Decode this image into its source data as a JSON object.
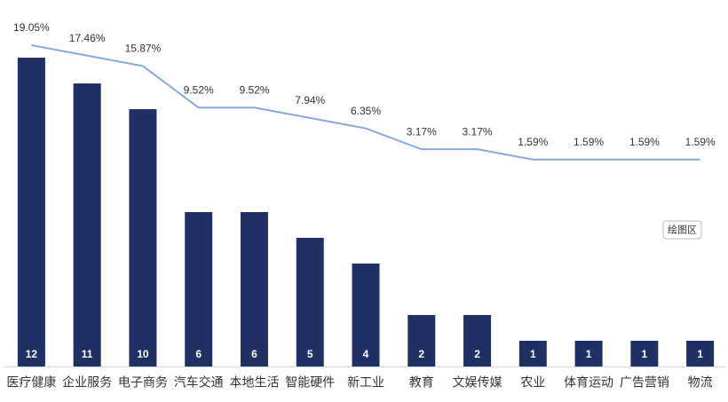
{
  "chart_data": {
    "type": "bar-line",
    "categories": [
      "医疗健康",
      "企业服务",
      "电子商务",
      "汽车交通",
      "本地生活",
      "智能硬件",
      "新工业",
      "教育",
      "文娱传媒",
      "农业",
      "体育运动",
      "广告营销",
      "物流"
    ],
    "series": [
      {
        "type": "bar",
        "color": "#1f3164",
        "values": [
          12,
          11,
          10,
          6,
          6,
          5,
          4,
          2,
          2,
          1,
          1,
          1,
          1
        ]
      },
      {
        "type": "line",
        "axis": "y2",
        "color": "#86a8dc",
        "values": [
          19.05,
          17.46,
          15.87,
          9.52,
          9.52,
          7.94,
          6.35,
          3.17,
          3.17,
          1.59,
          1.59,
          1.59,
          1.59
        ],
        "value_labels": [
          "19.05%",
          "17.46%",
          "15.87%",
          "9.52%",
          "9.52%",
          "7.94%",
          "6.35%",
          "3.17%",
          "3.17%",
          "1.59%",
          "1.59%",
          "1.59%",
          "1.59%"
        ]
      }
    ],
    "ylim": [
      0,
      14
    ],
    "y2lim": [
      -30,
      25
    ],
    "tooltip": "绘图区"
  }
}
